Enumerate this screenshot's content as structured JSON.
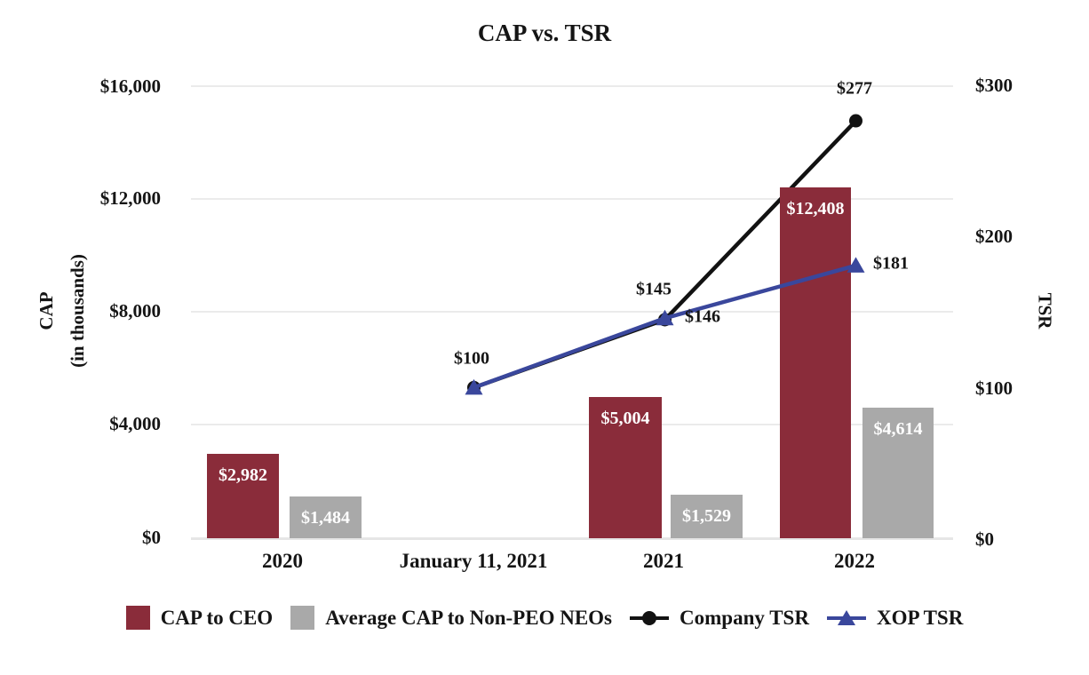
{
  "chart_data": {
    "type": "combo bar+line, dual axis",
    "title": "CAP vs. TSR",
    "categories": [
      "2020",
      "January 11, 2021",
      "2021",
      "2022"
    ],
    "left_axis": {
      "title": "CAP",
      "subtitle": "(in thousands)",
      "ticks": [
        "$16,000",
        "$12,000",
        "$8,000",
        "$4,000",
        "$0"
      ],
      "min": 0,
      "max": 16000
    },
    "right_axis": {
      "title": "TSR",
      "ticks": [
        "$300",
        "$200",
        "$100",
        "$0"
      ],
      "min": 0,
      "max": 300
    },
    "bar_series": [
      {
        "name": "CAP to CEO",
        "color": "#8A2C3A",
        "axis": "left",
        "points": [
          {
            "category": "2020",
            "value": 2982,
            "label": "$2,982"
          },
          {
            "category": "2021",
            "value": 5004,
            "label": "$5,004"
          },
          {
            "category": "2022",
            "value": 12408,
            "label": "$12,408"
          }
        ]
      },
      {
        "name": "Average CAP to Non-PEO NEOs",
        "color": "#A9A9A9",
        "axis": "left",
        "points": [
          {
            "category": "2020",
            "value": 1484,
            "label": "$1,484"
          },
          {
            "category": "2021",
            "value": 1529,
            "label": "$1,529"
          },
          {
            "category": "2022",
            "value": 4614,
            "label": "$4,614"
          }
        ]
      }
    ],
    "line_series": [
      {
        "name": "Company TSR",
        "color": "#121212",
        "marker": "circle",
        "axis": "right",
        "points": [
          {
            "category": "January 11, 2021",
            "value": 100,
            "label": "$100"
          },
          {
            "category": "2021",
            "value": 145,
            "label": "$145"
          },
          {
            "category": "2022",
            "value": 277,
            "label": "$277"
          }
        ]
      },
      {
        "name": "XOP TSR",
        "color": "#3A479C",
        "marker": "triangle",
        "axis": "right",
        "points": [
          {
            "category": "January 11, 2021",
            "value": 100,
            "label": "$100"
          },
          {
            "category": "2021",
            "value": 146,
            "label": "$146"
          },
          {
            "category": "2022",
            "value": 181,
            "label": "$181"
          }
        ]
      }
    ],
    "grid": {
      "horizontal": true,
      "color": "#EBEBEB"
    },
    "legend_position": "bottom",
    "legend": [
      "CAP to CEO",
      "Average CAP to Non-PEO NEOs",
      "Company TSR",
      "XOP TSR"
    ]
  }
}
